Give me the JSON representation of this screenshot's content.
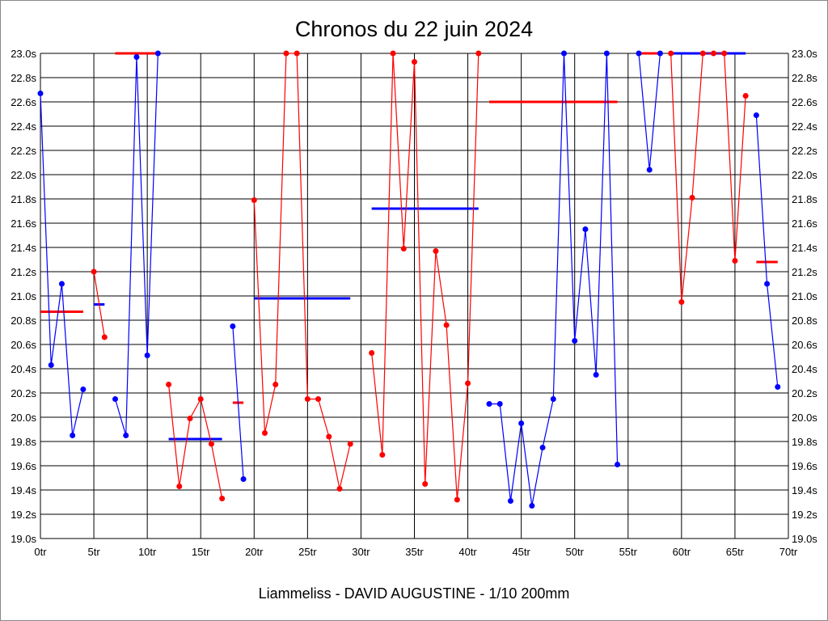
{
  "chart_data": {
    "type": "line",
    "title": "Chronos du 22 juin 2024",
    "xlabel": "Liammeliss - DAVID AUGUSTINE - 1/10 200mm",
    "ylabel": "",
    "xlim": [
      0,
      70
    ],
    "ylim": [
      19.0,
      23.0
    ],
    "grid": true,
    "x_ticks": [
      "0tr",
      "5tr",
      "10tr",
      "15tr",
      "20tr",
      "25tr",
      "30tr",
      "35tr",
      "40tr",
      "45tr",
      "50tr",
      "55tr",
      "60tr",
      "65tr",
      "70tr"
    ],
    "y_ticks": [
      "19.0s",
      "19.2s",
      "19.4s",
      "19.6s",
      "19.8s",
      "20.0s",
      "20.2s",
      "20.4s",
      "20.6s",
      "20.8s",
      "21.0s",
      "21.2s",
      "21.4s",
      "21.6s",
      "21.8s",
      "22.0s",
      "22.2s",
      "22.4s",
      "22.6s",
      "22.8s",
      "23.0s"
    ],
    "colors": {
      "blue": "#0000ff",
      "red": "#ff0000"
    },
    "segments": [
      {
        "color": "blue",
        "start_lap": 0,
        "values": [
          22.67,
          20.43,
          21.1,
          19.85,
          20.23
        ],
        "mean": 20.87
      },
      {
        "color": "red",
        "start_lap": 5,
        "values": [
          21.2,
          20.66
        ],
        "mean": 20.93
      },
      {
        "color": "blue",
        "start_lap": 7,
        "values": [
          20.15,
          19.85,
          22.97,
          20.51,
          23.0
        ],
        "mean": 23.0
      },
      {
        "color": "red",
        "start_lap": 12,
        "values": [
          20.27,
          19.43,
          19.99,
          20.15,
          19.78,
          19.33
        ],
        "mean": 19.82
      },
      {
        "color": "blue",
        "start_lap": 18,
        "values": [
          20.75,
          19.49
        ],
        "mean": 20.12
      },
      {
        "color": "red",
        "start_lap": 20,
        "values": [
          21.79,
          19.87,
          20.27,
          23.0,
          23.0,
          20.15,
          20.15,
          19.84,
          19.41,
          19.78
        ],
        "mean": 20.98
      },
      {
        "color": "red",
        "start_lap": 31,
        "values": [
          20.53,
          19.69,
          23.0,
          21.39,
          22.93,
          19.45,
          21.37,
          20.76,
          19.32,
          20.28,
          23.0
        ],
        "mean": 21.72
      },
      {
        "color": "blue",
        "start_lap": 42,
        "values": [
          20.11,
          20.11,
          19.31,
          19.95,
          19.27,
          19.75,
          20.15,
          23.0,
          20.63,
          21.55,
          20.35,
          23.0,
          19.61
        ],
        "mean": 22.6
      },
      {
        "color": "blue",
        "start_lap": 56,
        "values": [
          23.0,
          22.04,
          23.0
        ],
        "mean": 23.0
      },
      {
        "color": "red",
        "start_lap": 59,
        "values": [
          23.0,
          20.95,
          21.81,
          23.0,
          23.0,
          23.0,
          21.29,
          22.65
        ],
        "mean": 23.0
      },
      {
        "color": "blue",
        "start_lap": 67,
        "values": [
          22.49,
          21.1,
          20.25
        ],
        "mean": 21.28
      }
    ]
  }
}
